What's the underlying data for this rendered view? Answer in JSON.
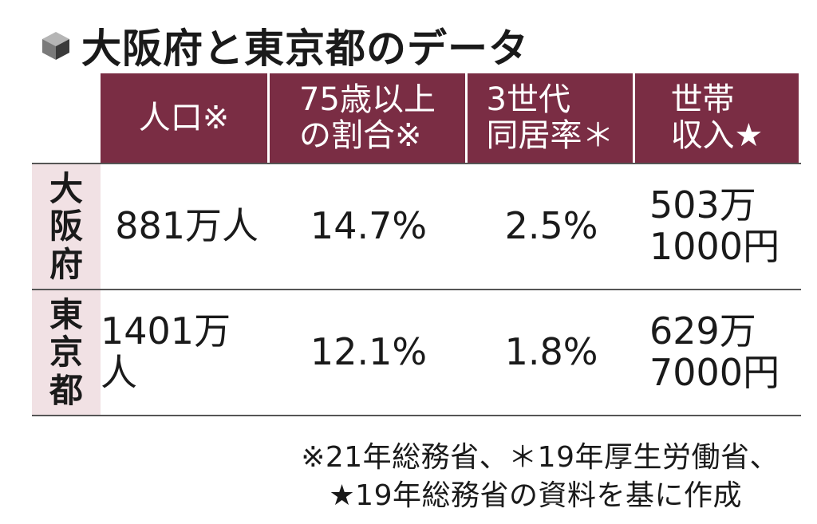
{
  "title": "大阪府と東京都のデータ",
  "chart_data": {
    "type": "table",
    "title": "大阪府と東京都のデータ",
    "columns": [
      "人口※",
      "75歳以上\nの割合※",
      "3世代\n同居率＊",
      "世帯\n収入★"
    ],
    "rows": [
      {
        "name": "大阪府",
        "name_chars": [
          "大",
          "阪",
          "府"
        ],
        "values": [
          "881万人",
          "14.7%",
          "2.5%",
          "503万\n1000円"
        ]
      },
      {
        "name": "東京都",
        "name_chars": [
          "東",
          "京",
          "都"
        ],
        "values": [
          "1401万人",
          "12.1%",
          "1.8%",
          "629万\n7000円"
        ]
      }
    ],
    "notes": [
      "※21年総務省、＊19年厚生労働省、",
      "★19年総務省の資料を基に作成"
    ]
  },
  "colors": {
    "header_bg": "#7a2d44",
    "row_header_bg": "#f1e1e4",
    "text": "#1a1a1a"
  },
  "icons": {
    "title_icon": "cube-icon"
  }
}
